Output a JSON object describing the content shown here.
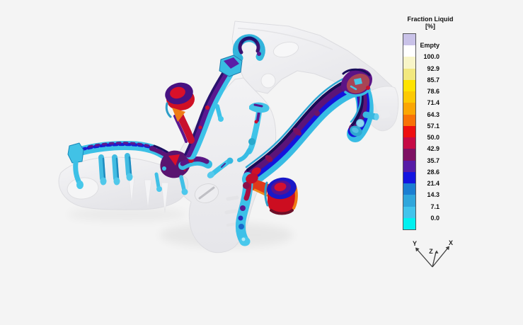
{
  "scene": {
    "background_color": "#f4f4f4",
    "part_color": "#ededef"
  },
  "legend": {
    "title_line1": "Fraction Liquid",
    "title_line2": "[%]",
    "labels": [
      "Empty",
      "100.0",
      "92.9",
      "85.7",
      "78.6",
      "71.4",
      "64.3",
      "57.1",
      "50.0",
      "42.9",
      "35.7",
      "28.6",
      "21.4",
      "14.3",
      "7.1",
      "0.0"
    ],
    "segment_colors": [
      "#c9c2e8",
      "#ffffff",
      "#f8f5c8",
      "#f2e87e",
      "#ffe300",
      "#fdc903",
      "#fba603",
      "#f87207",
      "#ee0f10",
      "#c60a45",
      "#7e1163",
      "#571ca6",
      "#1414e0",
      "#1b7ed2",
      "#2fa6dc",
      "#41c4ec",
      "#00f0f0"
    ]
  },
  "triad": {
    "x_label": "X",
    "y_label": "Y",
    "z_label": "Z"
  }
}
